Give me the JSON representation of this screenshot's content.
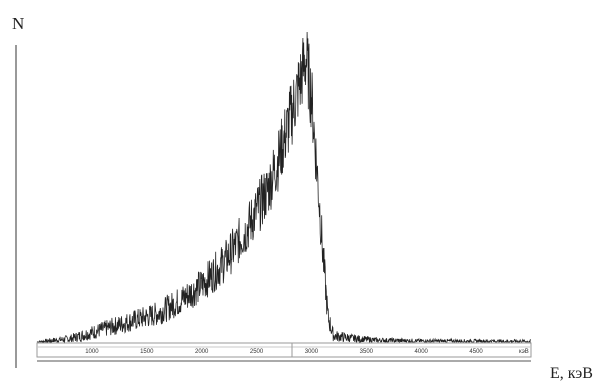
{
  "chart_data": {
    "type": "line",
    "ylabel": "N",
    "xlabel": "E, кэВ",
    "x_axis_unit_label": "кэВ",
    "x_ticks": [
      1000,
      1500,
      2000,
      2500,
      3000,
      3500,
      4000,
      4500
    ],
    "xlim": [
      500,
      5000
    ],
    "grid": false,
    "series": [
      {
        "color": "#222222",
        "points": [
          {
            "x": 500,
            "y": 0
          },
          {
            "x": 800,
            "y": 1
          },
          {
            "x": 1000,
            "y": 3
          },
          {
            "x": 1200,
            "y": 5
          },
          {
            "x": 1400,
            "y": 7
          },
          {
            "x": 1600,
            "y": 9
          },
          {
            "x": 1800,
            "y": 13
          },
          {
            "x": 2000,
            "y": 18
          },
          {
            "x": 2200,
            "y": 25
          },
          {
            "x": 2400,
            "y": 35
          },
          {
            "x": 2600,
            "y": 48
          },
          {
            "x": 2700,
            "y": 58
          },
          {
            "x": 2800,
            "y": 70
          },
          {
            "x": 2900,
            "y": 83
          },
          {
            "x": 2950,
            "y": 90
          },
          {
            "x": 3000,
            "y": 78
          },
          {
            "x": 3050,
            "y": 55
          },
          {
            "x": 3100,
            "y": 30
          },
          {
            "x": 3150,
            "y": 8
          },
          {
            "x": 3200,
            "y": 2
          },
          {
            "x": 3400,
            "y": 1
          },
          {
            "x": 3600,
            "y": 0.5
          },
          {
            "x": 4000,
            "y": 0.3
          },
          {
            "x": 5000,
            "y": 0.2
          }
        ]
      }
    ]
  }
}
